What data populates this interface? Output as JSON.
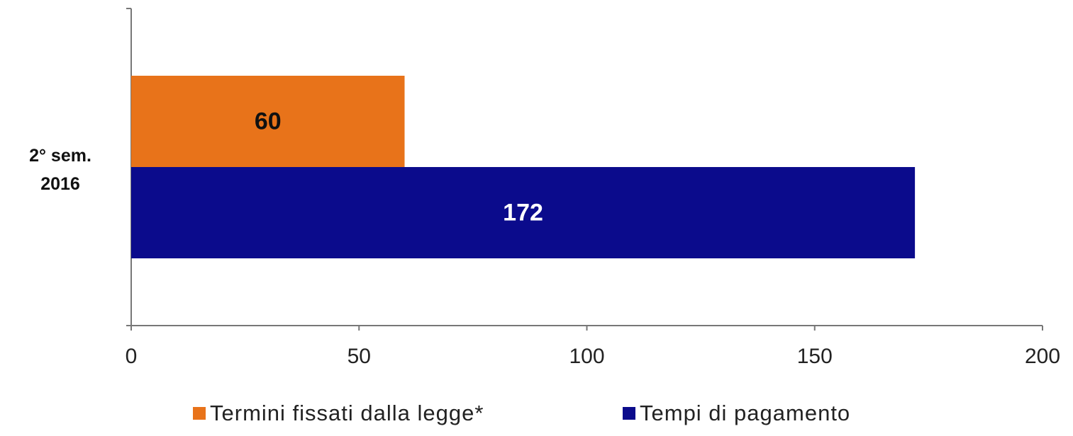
{
  "chart_data": {
    "type": "bar",
    "orientation": "horizontal",
    "categories": [
      "2° sem.\n2016"
    ],
    "series": [
      {
        "name": "Termini fissati dalla legge*",
        "color": "#e8731a",
        "values": [
          60
        ]
      },
      {
        "name": "Tempi di pagamento",
        "color": "#0b0b8c",
        "values": [
          172
        ]
      }
    ],
    "xlim": [
      0,
      200
    ],
    "xticks": [
      0,
      50,
      100,
      150,
      200
    ],
    "legend": "bottom"
  }
}
